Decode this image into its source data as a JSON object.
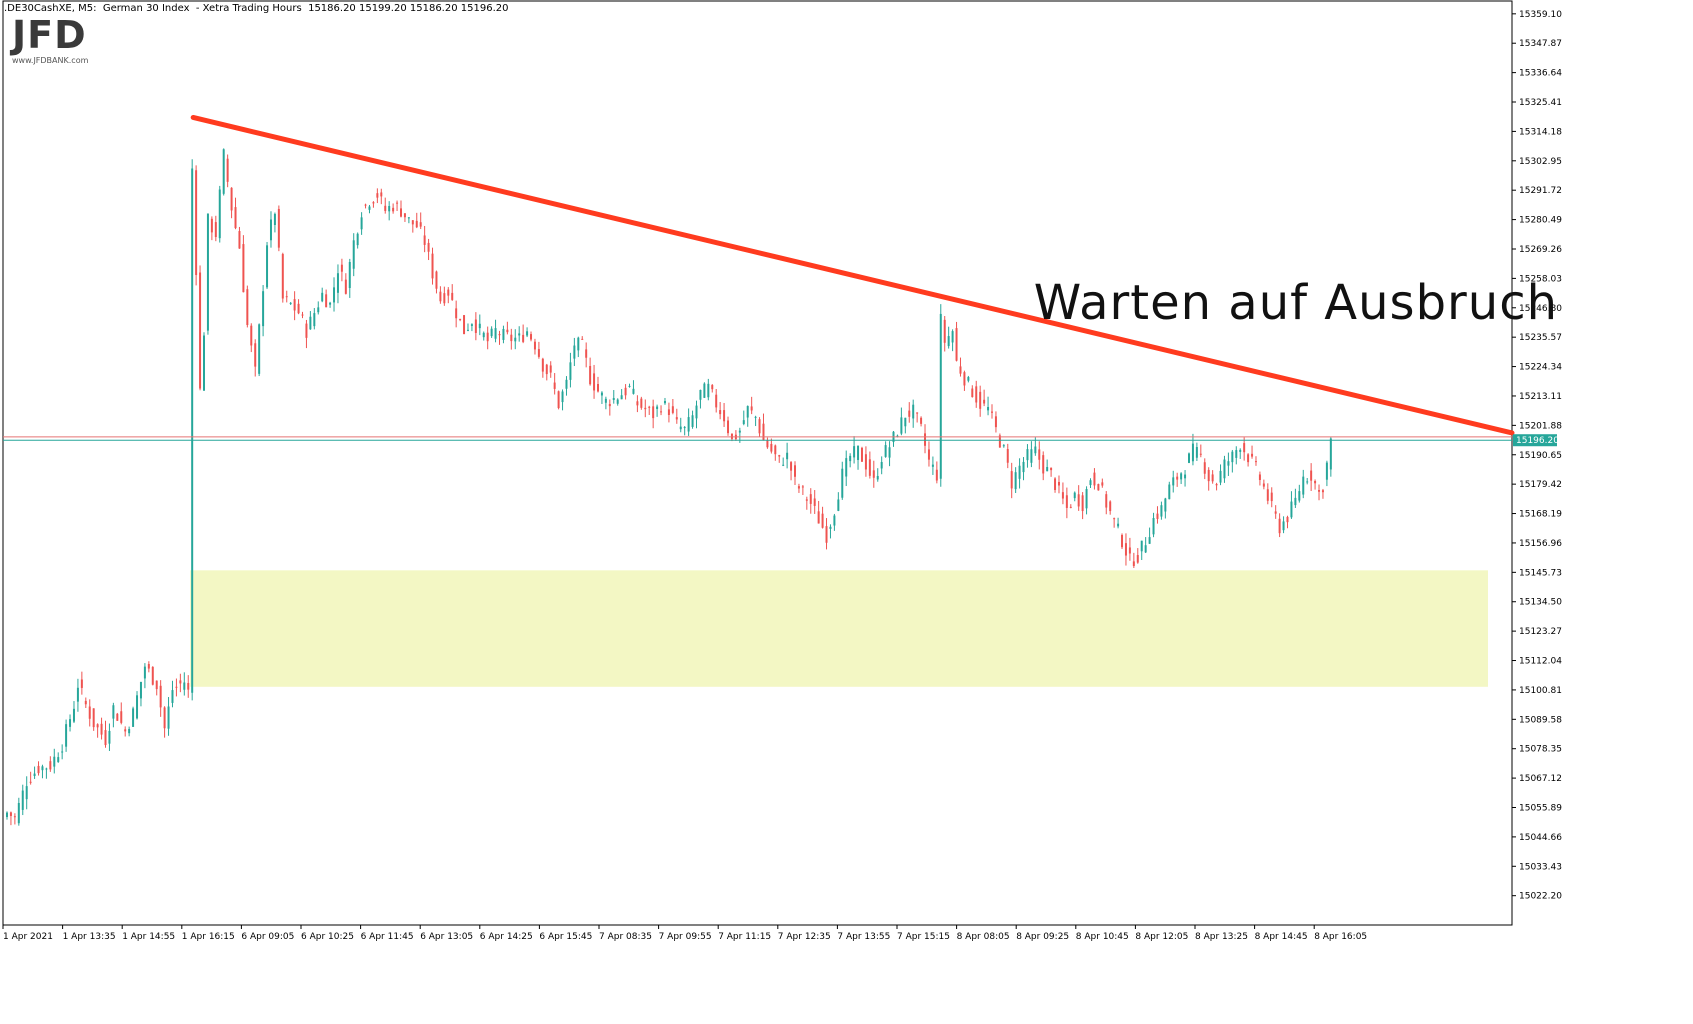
{
  "header": {
    "symbol": ".DE30CashXE",
    "timeframe": "M5",
    "instrument": "German 30 Index",
    "session": "Xetra Trading Hours",
    "ohlc": "15186.20 15199.20 15186.20 15196.20"
  },
  "logo": {
    "main": "JFD",
    "sub": "www.JFDBANK.com"
  },
  "annotation": "Warten auf Ausbruch",
  "colors": {
    "bull": "#26a69a",
    "bear": "#ef5350",
    "trendline": "#ff3b1f",
    "zone": "#f3f7c4",
    "price_line": "#26a69a",
    "price_label_bg": "#26a69a",
    "resistance_line": "#e57373",
    "axis": "#000000"
  },
  "chart_data": {
    "type": "candlestick",
    "title": "",
    "ylim": [
      15011.0,
      15364.0
    ],
    "y_ticks": [
      "15359.10",
      "15347.87",
      "15336.64",
      "15325.41",
      "15314.18",
      "15302.95",
      "15291.72",
      "15280.49",
      "15269.26",
      "15258.03",
      "15246.80",
      "15235.57",
      "15224.34",
      "15213.11",
      "15201.88",
      "15190.65",
      "15179.42",
      "15168.19",
      "15156.96",
      "15145.73",
      "15134.50",
      "15123.27",
      "15112.04",
      "15100.81",
      "15089.58",
      "15078.35",
      "15067.12",
      "15055.89",
      "15044.66",
      "15033.43",
      "15022.20"
    ],
    "x_ticks": [
      "1 Apr 2021",
      "1 Apr 13:35",
      "1 Apr 14:55",
      "1 Apr 16:15",
      "6 Apr 09:05",
      "6 Apr 10:25",
      "6 Apr 11:45",
      "6 Apr 13:05",
      "6 Apr 14:25",
      "6 Apr 15:45",
      "7 Apr 08:35",
      "7 Apr 09:55",
      "7 Apr 11:15",
      "7 Apr 12:35",
      "7 Apr 13:55",
      "7 Apr 15:15",
      "8 Apr 08:05",
      "8 Apr 09:25",
      "8 Apr 10:45",
      "8 Apr 12:05",
      "8 Apr 13:25",
      "8 Apr 14:45",
      "8 Apr 16:05"
    ],
    "current_price": "15196.20",
    "resistance_level": 15197.5,
    "trendline": {
      "start": {
        "bar": 47,
        "price": 15319.5
      },
      "end_price_at_axis": 15199.0
    },
    "support_zone": {
      "start_bar": 47,
      "low": 15102.0,
      "high": 15146.5
    },
    "anchors": [
      [
        0,
        15054
      ],
      [
        2,
        15052
      ],
      [
        5,
        15066
      ],
      [
        8,
        15071
      ],
      [
        11,
        15072
      ],
      [
        14,
        15080
      ],
      [
        17,
        15095
      ],
      [
        18,
        15103
      ],
      [
        20,
        15095
      ],
      [
        22,
        15088
      ],
      [
        25,
        15082
      ],
      [
        27,
        15094
      ],
      [
        30,
        15085
      ],
      [
        32,
        15092
      ],
      [
        35,
        15110
      ],
      [
        38,
        15103
      ],
      [
        40,
        15086
      ],
      [
        42,
        15101
      ],
      [
        45,
        15104
      ],
      [
        46,
        15100
      ],
      [
        47,
        15300
      ],
      [
        48,
        15262
      ],
      [
        49,
        15215
      ],
      [
        50,
        15238
      ],
      [
        51,
        15280
      ],
      [
        53,
        15275
      ],
      [
        55,
        15305
      ],
      [
        57,
        15285
      ],
      [
        59,
        15270
      ],
      [
        61,
        15240
      ],
      [
        63,
        15222
      ],
      [
        66,
        15272
      ],
      [
        68,
        15284
      ],
      [
        70,
        15250
      ],
      [
        72,
        15248
      ],
      [
        74,
        15245
      ],
      [
        76,
        15238
      ],
      [
        78,
        15245
      ],
      [
        80,
        15252
      ],
      [
        82,
        15248
      ],
      [
        84,
        15262
      ],
      [
        86,
        15255
      ],
      [
        88,
        15272
      ],
      [
        90,
        15284
      ],
      [
        92,
        15288
      ],
      [
        94,
        15290
      ],
      [
        96,
        15284
      ],
      [
        98,
        15286
      ],
      [
        100,
        15284
      ],
      [
        102,
        15280
      ],
      [
        104,
        15278
      ],
      [
        106,
        15272
      ],
      [
        108,
        15260
      ],
      [
        110,
        15250
      ],
      [
        112,
        15253
      ],
      [
        114,
        15245
      ],
      [
        116,
        15238
      ],
      [
        118,
        15242
      ],
      [
        120,
        15238
      ],
      [
        122,
        15234
      ],
      [
        124,
        15238
      ],
      [
        126,
        15236
      ],
      [
        128,
        15235
      ],
      [
        130,
        15235
      ],
      [
        132,
        15238
      ],
      [
        134,
        15233
      ],
      [
        136,
        15225
      ],
      [
        138,
        15220
      ],
      [
        140,
        15210
      ],
      [
        142,
        15218
      ],
      [
        144,
        15233
      ],
      [
        146,
        15232
      ],
      [
        148,
        15220
      ],
      [
        150,
        15215
      ],
      [
        152,
        15211
      ],
      [
        154,
        15212
      ],
      [
        156,
        15214
      ],
      [
        158,
        15216
      ],
      [
        160,
        15210
      ],
      [
        162,
        15208
      ],
      [
        164,
        15206
      ],
      [
        166,
        15210
      ],
      [
        168,
        15208
      ],
      [
        170,
        15202
      ],
      [
        172,
        15200
      ],
      [
        174,
        15205
      ],
      [
        176,
        15214
      ],
      [
        178,
        15216
      ],
      [
        180,
        15210
      ],
      [
        182,
        15205
      ],
      [
        184,
        15196
      ],
      [
        186,
        15200
      ],
      [
        188,
        15208
      ],
      [
        190,
        15205
      ],
      [
        192,
        15196
      ],
      [
        194,
        15192
      ],
      [
        196,
        15188
      ],
      [
        198,
        15190
      ],
      [
        200,
        15180
      ],
      [
        202,
        15176
      ],
      [
        204,
        15172
      ],
      [
        206,
        15166
      ],
      [
        208,
        15160
      ],
      [
        210,
        15170
      ],
      [
        212,
        15183
      ],
      [
        214,
        15190
      ],
      [
        216,
        15192
      ],
      [
        218,
        15187
      ],
      [
        220,
        15180
      ],
      [
        222,
        15190
      ],
      [
        224,
        15194
      ],
      [
        226,
        15200
      ],
      [
        228,
        15206
      ],
      [
        230,
        15207
      ],
      [
        232,
        15200
      ],
      [
        234,
        15188
      ],
      [
        236,
        15183
      ],
      [
        237,
        15242
      ],
      [
        238,
        15234
      ],
      [
        240,
        15238
      ],
      [
        241,
        15226
      ],
      [
        243,
        15220
      ],
      [
        245,
        15215
      ],
      [
        247,
        15210
      ],
      [
        249,
        15208
      ],
      [
        251,
        15200
      ],
      [
        253,
        15192
      ],
      [
        255,
        15180
      ],
      [
        257,
        15186
      ],
      [
        259,
        15190
      ],
      [
        261,
        15192
      ],
      [
        263,
        15186
      ],
      [
        265,
        15183
      ],
      [
        267,
        15176
      ],
      [
        269,
        15170
      ],
      [
        271,
        15175
      ],
      [
        273,
        15172
      ],
      [
        275,
        15182
      ],
      [
        277,
        15180
      ],
      [
        279,
        15172
      ],
      [
        281,
        15165
      ],
      [
        283,
        15158
      ],
      [
        285,
        15150
      ],
      [
        287,
        15152
      ],
      [
        289,
        15158
      ],
      [
        291,
        15166
      ],
      [
        293,
        15170
      ],
      [
        295,
        15178
      ],
      [
        297,
        15182
      ],
      [
        299,
        15186
      ],
      [
        301,
        15192
      ],
      [
        303,
        15190
      ],
      [
        305,
        15182
      ],
      [
        307,
        15180
      ],
      [
        309,
        15187
      ],
      [
        311,
        15190
      ],
      [
        313,
        15195
      ],
      [
        315,
        15190
      ],
      [
        317,
        15185
      ],
      [
        319,
        15178
      ],
      [
        321,
        15170
      ],
      [
        323,
        15163
      ],
      [
        325,
        15167
      ],
      [
        327,
        15173
      ],
      [
        329,
        15182
      ],
      [
        331,
        15183
      ],
      [
        333,
        15176
      ],
      [
        334,
        15179
      ],
      [
        335,
        15187
      ],
      [
        336,
        15196
      ]
    ]
  }
}
